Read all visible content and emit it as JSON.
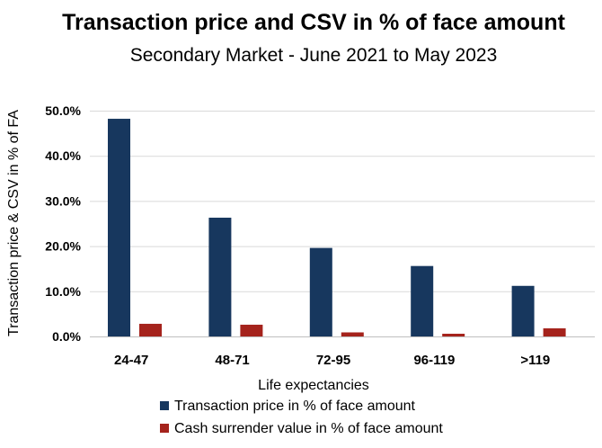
{
  "chart_data": {
    "type": "bar",
    "title": "Transaction price and CSV in % of face amount",
    "subtitle": "Secondary Market - June 2021 to May 2023",
    "xlabel": "Life expectancies",
    "ylabel": "Transaction price & CSV in % of FA",
    "categories": [
      "24-47",
      "48-71",
      "72-95",
      "96-119",
      ">119"
    ],
    "series": [
      {
        "name": "Transaction price in % of face amount",
        "color": "#17375e",
        "values": [
          48.2,
          26.3,
          19.6,
          15.6,
          11.2
        ]
      },
      {
        "name": "Cash surrender value in % of face amount",
        "color": "#a5231c",
        "values": [
          2.8,
          2.6,
          0.9,
          0.6,
          1.8
        ]
      }
    ],
    "yticks": [
      "0.0%",
      "10.0%",
      "20.0%",
      "30.0%",
      "40.0%",
      "50.0%"
    ],
    "ylim": [
      0,
      50
    ],
    "grid": true,
    "legend_position": "bottom"
  }
}
